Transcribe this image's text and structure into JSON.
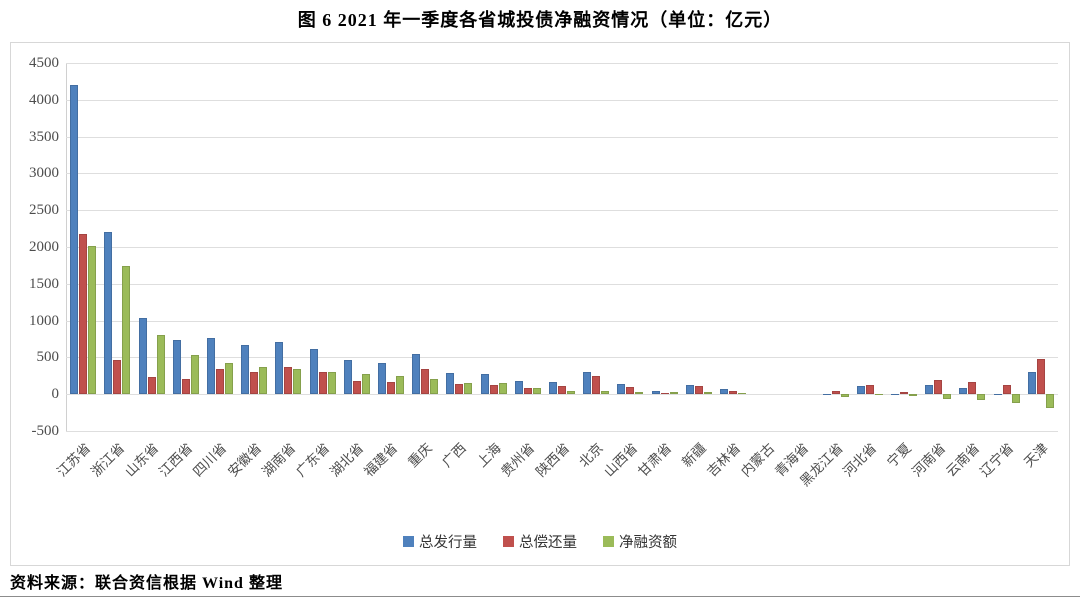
{
  "title": "图 6  2021 年一季度各省城投债净融资情况（单位：亿元）",
  "source_note": "资料来源：联合资信根据 Wind 整理",
  "chart_data": {
    "type": "bar",
    "title": "图 6  2021 年一季度各省城投债净融资情况",
    "unit": "亿元",
    "grid": true,
    "legend_position": "bottom",
    "ylim": [
      -500,
      4500
    ],
    "ytick_step": 500,
    "categories": [
      "江苏省",
      "浙江省",
      "山东省",
      "江西省",
      "四川省",
      "安徽省",
      "湖南省",
      "广东省",
      "湖北省",
      "福建省",
      "重庆",
      "广西",
      "上海",
      "贵州省",
      "陕西省",
      "北京",
      "山西省",
      "甘肃省",
      "新疆",
      "吉林省",
      "内蒙古",
      "青海省",
      "黑龙江省",
      "河北省",
      "宁夏",
      "河南省",
      "云南省",
      "辽宁省",
      "天津"
    ],
    "series": [
      {
        "name": "总发行量",
        "color": "#4F81BD",
        "values": [
          4200,
          2210,
          1040,
          730,
          770,
          670,
          710,
          610,
          460,
          420,
          550,
          290,
          280,
          175,
          160,
          295,
          135,
          45,
          130,
          70,
          0,
          0,
          5,
          110,
          5,
          120,
          85,
          5,
          300
        ]
      },
      {
        "name": "总偿还量",
        "color": "#C0504D",
        "values": [
          2180,
          465,
          240,
          200,
          345,
          300,
          370,
          305,
          180,
          170,
          345,
          140,
          130,
          90,
          115,
          250,
          100,
          10,
          105,
          50,
          0,
          0,
          40,
          125,
          30,
          190,
          160,
          125,
          485
        ]
      },
      {
        "name": "净融资额",
        "color": "#9BBB59",
        "values": [
          2020,
          1745,
          800,
          530,
          425,
          370,
          340,
          305,
          280,
          250,
          205,
          150,
          150,
          85,
          45,
          45,
          35,
          35,
          25,
          20,
          0,
          0,
          -35,
          -15,
          -25,
          -70,
          -75,
          -120,
          -185
        ]
      }
    ]
  }
}
